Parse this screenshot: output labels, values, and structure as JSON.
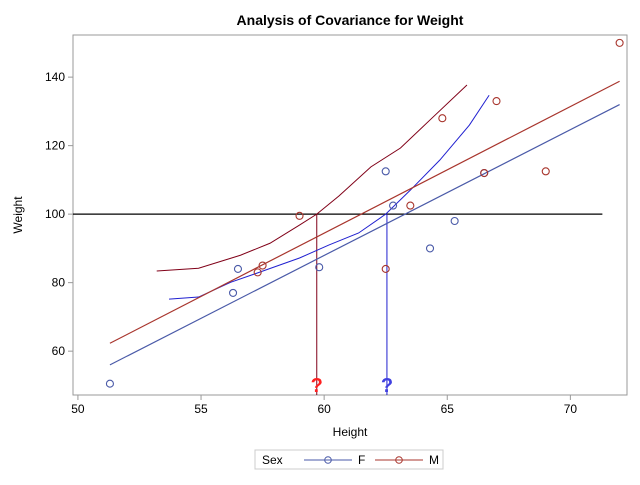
{
  "chart_data": {
    "type": "scatter",
    "title": "Analysis of Covariance for Weight",
    "xlabel": "Height",
    "ylabel": "Weight",
    "xlim": [
      49.8,
      72.3
    ],
    "ylim": [
      47.2,
      152.3
    ],
    "xticks": [
      50,
      55,
      60,
      65,
      70
    ],
    "yticks": [
      60,
      80,
      100,
      120,
      140
    ],
    "grid": false,
    "legend": {
      "title": "Sex",
      "position": "bottom",
      "entries": [
        "F",
        "M"
      ]
    },
    "colors": {
      "F": "#4a5aa8",
      "M": "#a8352d",
      "F_curve": "#2020d0",
      "M_curve": "#800018",
      "reference": "#000000"
    },
    "series": [
      {
        "name": "F",
        "points": [
          [
            51.3,
            50.5
          ],
          [
            56.3,
            77
          ],
          [
            56.5,
            84
          ],
          [
            59.8,
            84.5
          ],
          [
            62.5,
            112.5
          ],
          [
            62.8,
            102.5
          ],
          [
            64.3,
            90
          ],
          [
            65.3,
            98
          ],
          [
            66.5,
            112
          ]
        ],
        "fit": [
          [
            51.3,
            56.0
          ],
          [
            72.0,
            132.0
          ]
        ],
        "curve": [
          [
            53.7,
            75.2
          ],
          [
            54.9,
            75.8
          ],
          [
            56.2,
            80.1
          ],
          [
            57.4,
            83.1
          ],
          [
            59.0,
            87.2
          ],
          [
            60.2,
            91.0
          ],
          [
            61.4,
            94.5
          ],
          [
            62.5,
            100
          ],
          [
            63.5,
            107
          ],
          [
            64.7,
            115.8
          ],
          [
            65.9,
            126
          ],
          [
            66.7,
            134.7
          ]
        ]
      },
      {
        "name": "M",
        "points": [
          [
            57.3,
            83
          ],
          [
            57.5,
            85
          ],
          [
            59,
            99.5
          ],
          [
            62.5,
            84
          ],
          [
            63.5,
            102.5
          ],
          [
            64.8,
            128
          ],
          [
            66.5,
            112
          ],
          [
            67,
            133
          ],
          [
            69,
            112.5
          ],
          [
            72,
            150
          ]
        ],
        "fit": [
          [
            51.3,
            62.3
          ],
          [
            72.0,
            138.8
          ]
        ],
        "curve": [
          [
            53.2,
            83.4
          ],
          [
            54.9,
            84.2
          ],
          [
            56.6,
            88.0
          ],
          [
            57.8,
            91.5
          ],
          [
            59.0,
            96.8
          ],
          [
            59.7,
            100
          ],
          [
            60.6,
            105.3
          ],
          [
            61.9,
            113.8
          ],
          [
            63.1,
            119.3
          ],
          [
            64.3,
            127.5
          ],
          [
            65.8,
            137.7
          ]
        ]
      }
    ],
    "reference_line": {
      "y": 100,
      "x_from": 49.8,
      "x_to": 71.3
    },
    "drop_lines": [
      {
        "series": "M",
        "x": 59.7,
        "label": "?"
      },
      {
        "series": "F",
        "x": 62.55,
        "label": "?"
      }
    ]
  }
}
